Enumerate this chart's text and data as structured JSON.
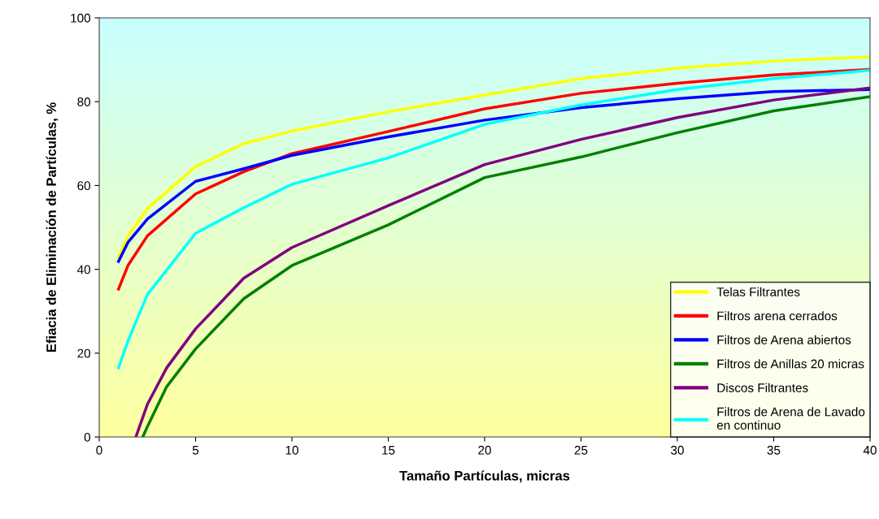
{
  "chart_data": {
    "type": "line",
    "xlabel": "Tamaño Partículas, micras",
    "ylabel": "Efiacia de Eliminación de Partículas, %",
    "xlim": [
      0,
      40
    ],
    "ylim": [
      0,
      100
    ],
    "xticks": [
      0,
      5,
      10,
      15,
      20,
      25,
      30,
      35,
      40
    ],
    "yticks": [
      0,
      20,
      40,
      60,
      80,
      100
    ],
    "grid": false,
    "legend": "bottom right",
    "marker": "none",
    "line_style": "solid",
    "series": [
      {
        "name": "Telas Filtrantes",
        "color": "#ffff00",
        "x": [
          1,
          1.5,
          2.5,
          5,
          7.5,
          10,
          15,
          20,
          25,
          30,
          35,
          40
        ],
        "values": [
          43,
          48,
          54.5,
          64.5,
          70,
          73,
          77.6,
          81.6,
          85.5,
          88,
          89.7,
          90.7
        ]
      },
      {
        "name": "Filtros arena cerrados",
        "color": "#ff0000",
        "x": [
          1,
          1.5,
          2.5,
          5,
          7.5,
          10,
          15,
          20,
          25,
          30,
          35,
          40
        ],
        "values": [
          35.3,
          41,
          48,
          58,
          63.3,
          67.6,
          72.9,
          78.3,
          82,
          84.4,
          86.4,
          87.7
        ]
      },
      {
        "name": "Filtros de Arena abiertos",
        "color": "#0000ff",
        "x": [
          1,
          1.5,
          2.5,
          5,
          7.5,
          10,
          15,
          20,
          25,
          30,
          35,
          40
        ],
        "values": [
          41.9,
          46.5,
          52,
          61,
          64,
          67.2,
          71.6,
          75.6,
          78.6,
          80.7,
          82.4,
          82.9
        ]
      },
      {
        "name": "Filtros de Anillas 20 micras",
        "color": "#008000",
        "x": [
          2.26,
          2.5,
          3.5,
          5,
          7.5,
          10,
          15,
          20,
          25,
          30,
          35,
          40
        ],
        "values": [
          0,
          2.5,
          12,
          21,
          33,
          40.9,
          50.6,
          61.9,
          66.8,
          72.6,
          77.8,
          81.2
        ]
      },
      {
        "name": "Discos Filtrantes",
        "color": "#800080",
        "x": [
          1.9,
          2.5,
          3.5,
          5,
          7.5,
          10,
          15,
          20,
          25,
          30,
          35,
          40
        ],
        "values": [
          0,
          7.8,
          16.5,
          25.8,
          37.9,
          45.2,
          55.2,
          65,
          71,
          76.2,
          80.4,
          83.3
        ]
      },
      {
        "name": "Filtros de Arena de Lavado\nen continuo",
        "color": "#00ffff",
        "x": [
          1,
          1.5,
          2.5,
          5,
          7.5,
          10,
          15,
          20,
          25,
          30,
          35,
          40
        ],
        "values": [
          16.5,
          23,
          34,
          48.6,
          54.7,
          60.3,
          66.6,
          74.6,
          79.2,
          82.9,
          85.5,
          87.5
        ]
      }
    ]
  }
}
